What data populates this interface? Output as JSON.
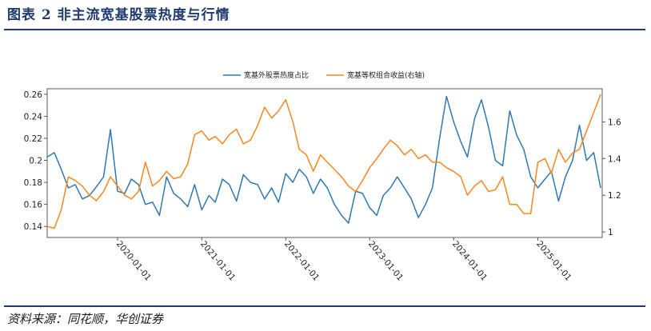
{
  "header": {
    "title": "图表 2   非主流宽基股票热度与行情"
  },
  "footer": {
    "source": "资料来源：同花顺，华创证券"
  },
  "colors": {
    "blue": "#2f78b4",
    "orange": "#f5871f",
    "navy": "#1f3a6e"
  },
  "chart_data": {
    "type": "line",
    "title": "",
    "x_tick_labels": [
      "2020-01-01",
      "2021-01-01",
      "2022-01-01",
      "2023-01-01",
      "2024-01-01",
      "2025-01-01"
    ],
    "left_axis": {
      "ylim": [
        0.13,
        0.265
      ],
      "ticks": [
        "0.14",
        "0.16",
        "0.18",
        "0.2",
        "0.22",
        "0.24",
        "0.26"
      ]
    },
    "right_axis": {
      "ylim": [
        0.97,
        1.78
      ],
      "ticks": [
        "1",
        "1.2",
        "1.4",
        "1.6"
      ]
    },
    "legend": {
      "placement": "top-center"
    },
    "series": [
      {
        "name": "宽基外股票热度占比",
        "axis": "left",
        "x": [
          "2019-03-01",
          "2019-04-01",
          "2019-05-01",
          "2019-06-01",
          "2019-07-01",
          "2019-08-01",
          "2019-09-01",
          "2019-10-01",
          "2019-11-01",
          "2019-12-01",
          "2020-01-01",
          "2020-02-01",
          "2020-03-01",
          "2020-04-01",
          "2020-05-01",
          "2020-06-01",
          "2020-07-01",
          "2020-08-01",
          "2020-09-01",
          "2020-10-01",
          "2020-11-01",
          "2020-12-01",
          "2021-01-01",
          "2021-02-01",
          "2021-03-01",
          "2021-04-01",
          "2021-05-01",
          "2021-06-01",
          "2021-07-01",
          "2021-08-01",
          "2021-09-01",
          "2021-10-01",
          "2021-11-01",
          "2021-12-01",
          "2022-01-01",
          "2022-02-01",
          "2022-03-01",
          "2022-04-01",
          "2022-05-01",
          "2022-06-01",
          "2022-07-01",
          "2022-08-01",
          "2022-09-01",
          "2022-10-01",
          "2022-11-01",
          "2022-12-01",
          "2023-01-01",
          "2023-02-01",
          "2023-03-01",
          "2023-04-01",
          "2023-05-01",
          "2023-06-01",
          "2023-07-01",
          "2023-08-01",
          "2023-09-01",
          "2023-10-01",
          "2023-11-01",
          "2023-12-01",
          "2024-01-01",
          "2024-02-01",
          "2024-03-01",
          "2024-04-01",
          "2024-05-01",
          "2024-06-01",
          "2024-07-01",
          "2024-08-01",
          "2024-09-01",
          "2024-10-01",
          "2024-11-01",
          "2024-12-01",
          "2025-01-01",
          "2025-02-01",
          "2025-03-01",
          "2025-04-01",
          "2025-05-01",
          "2025-06-01",
          "2025-07-01",
          "2025-08-01",
          "2025-09-01",
          "2025-10-01"
        ],
        "values": [
          0.203,
          0.207,
          0.192,
          0.175,
          0.178,
          0.165,
          0.168,
          0.176,
          0.185,
          0.228,
          0.172,
          0.17,
          0.183,
          0.178,
          0.16,
          0.162,
          0.15,
          0.185,
          0.17,
          0.165,
          0.158,
          0.178,
          0.155,
          0.168,
          0.162,
          0.183,
          0.178,
          0.163,
          0.187,
          0.18,
          0.178,
          0.165,
          0.175,
          0.162,
          0.188,
          0.18,
          0.192,
          0.185,
          0.17,
          0.183,
          0.175,
          0.16,
          0.15,
          0.143,
          0.172,
          0.17,
          0.157,
          0.15,
          0.168,
          0.175,
          0.185,
          0.175,
          0.165,
          0.148,
          0.16,
          0.175,
          0.22,
          0.258,
          0.235,
          0.217,
          0.203,
          0.238,
          0.255,
          0.23,
          0.2,
          0.195,
          0.245,
          0.223,
          0.21,
          0.185,
          0.175,
          0.183,
          0.19,
          0.163,
          0.185,
          0.2,
          0.232,
          0.2,
          0.207,
          0.175
        ]
      },
      {
        "name": "宽基等权组合收益(右轴)",
        "axis": "right",
        "x": [
          "2019-03-01",
          "2019-04-01",
          "2019-05-01",
          "2019-06-01",
          "2019-07-01",
          "2019-08-01",
          "2019-09-01",
          "2019-10-01",
          "2019-11-01",
          "2019-12-01",
          "2020-01-01",
          "2020-02-01",
          "2020-03-01",
          "2020-04-01",
          "2020-05-01",
          "2020-06-01",
          "2020-07-01",
          "2020-08-01",
          "2020-09-01",
          "2020-10-01",
          "2020-11-01",
          "2020-12-01",
          "2021-01-01",
          "2021-02-01",
          "2021-03-01",
          "2021-04-01",
          "2021-05-01",
          "2021-06-01",
          "2021-07-01",
          "2021-08-01",
          "2021-09-01",
          "2021-10-01",
          "2021-11-01",
          "2021-12-01",
          "2022-01-01",
          "2022-02-01",
          "2022-03-01",
          "2022-04-01",
          "2022-05-01",
          "2022-06-01",
          "2022-07-01",
          "2022-08-01",
          "2022-09-01",
          "2022-10-01",
          "2022-11-01",
          "2022-12-01",
          "2023-01-01",
          "2023-02-01",
          "2023-03-01",
          "2023-04-01",
          "2023-05-01",
          "2023-06-01",
          "2023-07-01",
          "2023-08-01",
          "2023-09-01",
          "2023-10-01",
          "2023-11-01",
          "2023-12-01",
          "2024-01-01",
          "2024-02-01",
          "2024-03-01",
          "2024-04-01",
          "2024-05-01",
          "2024-06-01",
          "2024-07-01",
          "2024-08-01",
          "2024-09-01",
          "2024-10-01",
          "2024-11-01",
          "2024-12-01",
          "2025-01-01",
          "2025-02-01",
          "2025-03-01",
          "2025-04-01",
          "2025-05-01",
          "2025-06-01",
          "2025-07-01",
          "2025-08-01",
          "2025-09-01",
          "2025-10-01"
        ],
        "values": [
          1.03,
          1.02,
          1.12,
          1.3,
          1.28,
          1.25,
          1.2,
          1.17,
          1.22,
          1.3,
          1.25,
          1.2,
          1.18,
          1.22,
          1.38,
          1.25,
          1.28,
          1.33,
          1.29,
          1.3,
          1.37,
          1.53,
          1.55,
          1.5,
          1.52,
          1.48,
          1.53,
          1.56,
          1.48,
          1.5,
          1.58,
          1.68,
          1.62,
          1.66,
          1.72,
          1.6,
          1.45,
          1.42,
          1.33,
          1.42,
          1.38,
          1.34,
          1.3,
          1.25,
          1.22,
          1.28,
          1.35,
          1.4,
          1.45,
          1.5,
          1.47,
          1.42,
          1.45,
          1.4,
          1.42,
          1.38,
          1.38,
          1.35,
          1.33,
          1.3,
          1.2,
          1.25,
          1.28,
          1.22,
          1.23,
          1.3,
          1.15,
          1.15,
          1.1,
          1.1,
          1.38,
          1.4,
          1.32,
          1.45,
          1.38,
          1.43,
          1.45,
          1.55,
          1.65,
          1.75
        ]
      }
    ]
  }
}
